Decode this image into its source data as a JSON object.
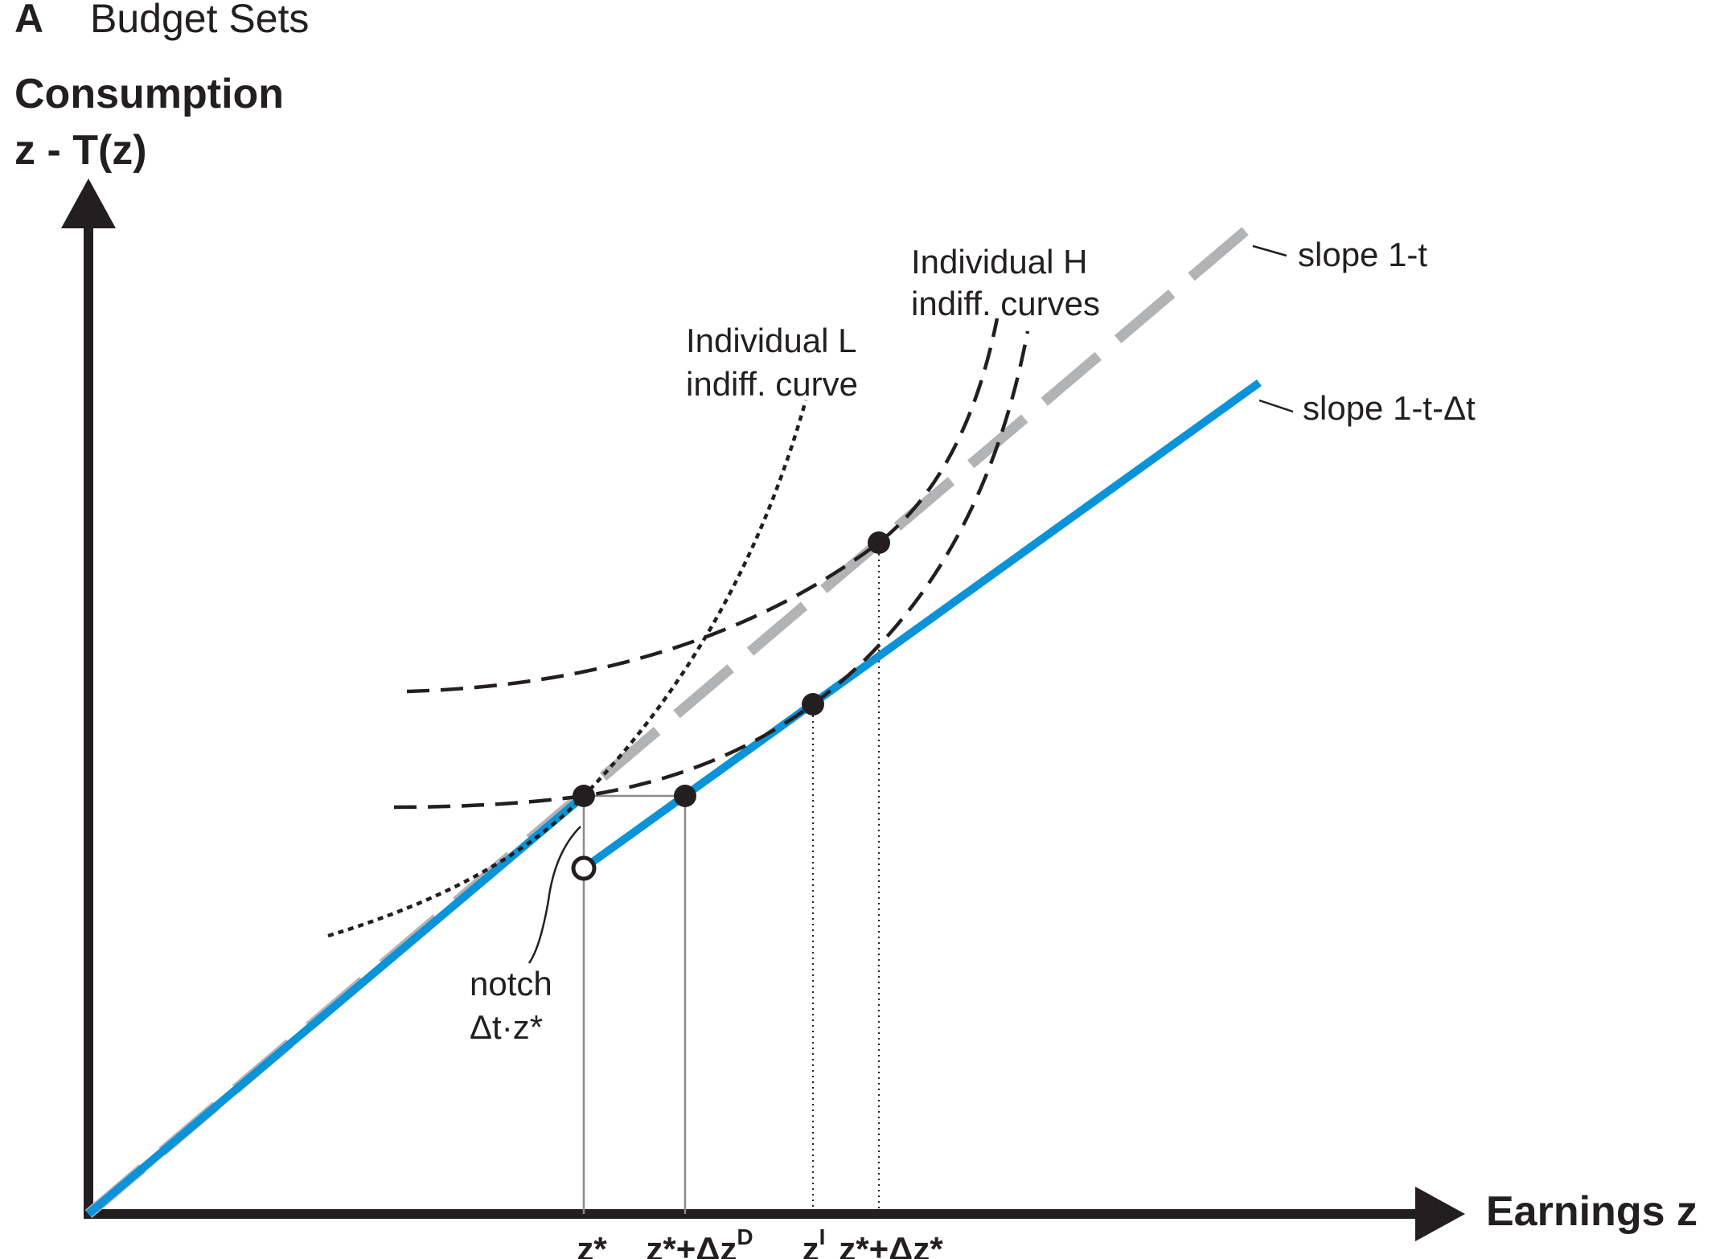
{
  "panel": {
    "letter": "A",
    "title": "Budget Sets"
  },
  "axes": {
    "y_label_line1": "Consumption",
    "y_label_line2": "z - T(z)",
    "x_label": "Earnings z"
  },
  "ticks": {
    "z_star": "z*",
    "z_star_plus_dzD_base": "z*+Δz",
    "z_star_plus_dzD_sup": "D",
    "zI_base": "z",
    "zI_sup": "I",
    "z_star_plus_dz_star": "z*+Δz*"
  },
  "annotations": {
    "slope_upper": "slope 1-t",
    "slope_lower": "slope 1-t-Δt",
    "indiv_H_line1": "Individual H",
    "indiv_H_line2": "indiff. curves",
    "indiv_L_line1": "Individual L",
    "indiv_L_line2": "indiff. curve",
    "notch_line1": "notch",
    "notch_line2": "Δt·z*"
  },
  "colors": {
    "axis": "#231f20",
    "blue_budget": "#0a93d8",
    "gray_budget": "#b2b3b5",
    "indifference": "#231f20",
    "guide_lines": "#8a8a8a"
  }
}
